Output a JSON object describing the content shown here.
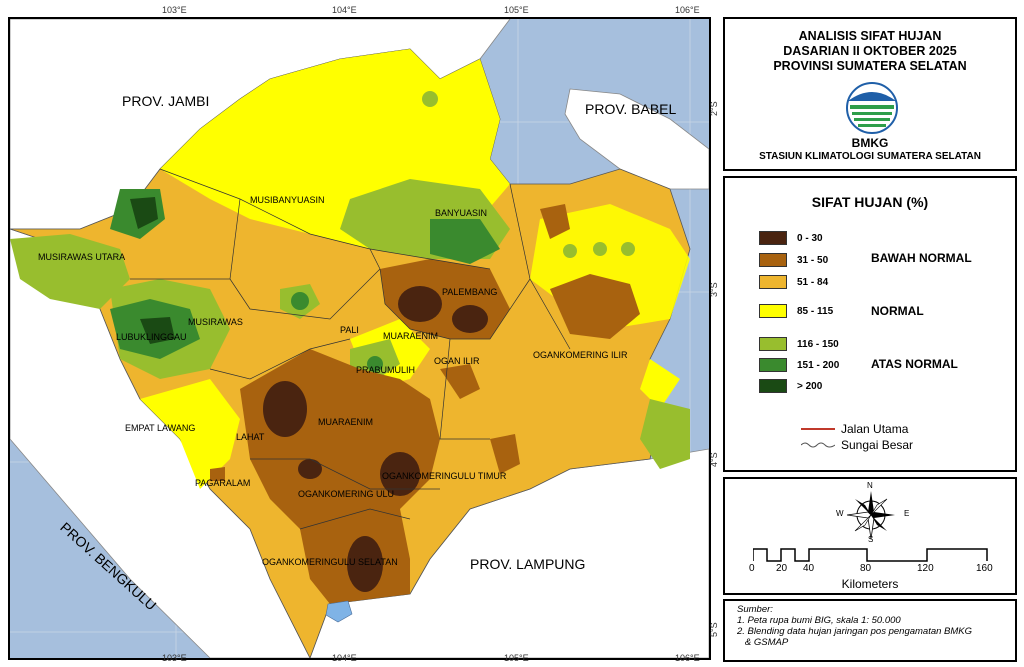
{
  "title": {
    "line1": "ANALISIS SIFAT HUJAN",
    "line2": "DASARIAN II OKTOBER 2025",
    "line3": "PROVINSI SUMATERA SELATAN",
    "agency": "BMKG",
    "station": "STASIUN KLIMATOLOGI SUMATERA SELATAN"
  },
  "legend": {
    "title": "SIFAT HUJAN (%)",
    "classes": [
      {
        "range": "0 - 30",
        "color": "#4a2410"
      },
      {
        "range": "31 - 50",
        "color": "#a8620f"
      },
      {
        "range": "51 - 84",
        "color": "#eeb52e"
      },
      {
        "range": "85 - 115",
        "color": "#ffff00"
      },
      {
        "range": "116 - 150",
        "color": "#98be2e"
      },
      {
        "range": "151 - 200",
        "color": "#3a8a2e"
      },
      {
        "range": "> 200",
        "color": "#1a4a14"
      }
    ],
    "categories": {
      "below": "BAWAH NORMAL",
      "normal": "NORMAL",
      "above": "ATAS NORMAL"
    },
    "lines": {
      "road": "Jalan Utama",
      "river": "Sungai Besar"
    },
    "road_color": "#c0392b",
    "river_color": "#555555"
  },
  "compass": {
    "n": "N",
    "s": "S",
    "e": "E",
    "w": "W"
  },
  "scale": {
    "ticks": [
      "0",
      "20",
      "40",
      "80",
      "120",
      "160"
    ],
    "unit": "Kilometers"
  },
  "source": {
    "heading": "Sumber:",
    "items": [
      "1. Peta rupa bumi BIG, skala 1: 50.000",
      "2. Blending data hujan jaringan pos pengamatan BMKG",
      "   & GSMAP"
    ]
  },
  "axes": {
    "lon_top": [
      "103°E",
      "104°E",
      "105°E",
      "106°E"
    ],
    "lon_bottom": [
      "103°E",
      "104°E",
      "105°E",
      "106°E"
    ],
    "lat_right": [
      "2°S",
      "3°S",
      "4°S",
      "5°S"
    ]
  },
  "map": {
    "sea_color": "#a6bfdd",
    "land_color": "#ffffff",
    "provinces": {
      "jambi": "PROV. JAMBI",
      "babel": "PROV. BABEL",
      "bengkulu": "PROV. BENGKULU",
      "lampung": "PROV. LAMPUNG"
    },
    "regencies": [
      "MUSIBANYUASIN",
      "BANYUASIN",
      "MUSIRAWAS UTARA",
      "MUSIRAWAS",
      "LUBUKLINGGAU",
      "PALI",
      "MUARAENIM",
      "PALEMBANG",
      "OGAN ILIR",
      "PRABUMULIH",
      "OGANKOMERING ILIR",
      "EMPAT LAWANG",
      "LAHAT",
      "MUARAENIM",
      "PAGARALAM",
      "OGANKOMERINGULU TIMUR",
      "OGANKOMERING ULU",
      "OGANKOMERINGULU SELATAN"
    ]
  }
}
